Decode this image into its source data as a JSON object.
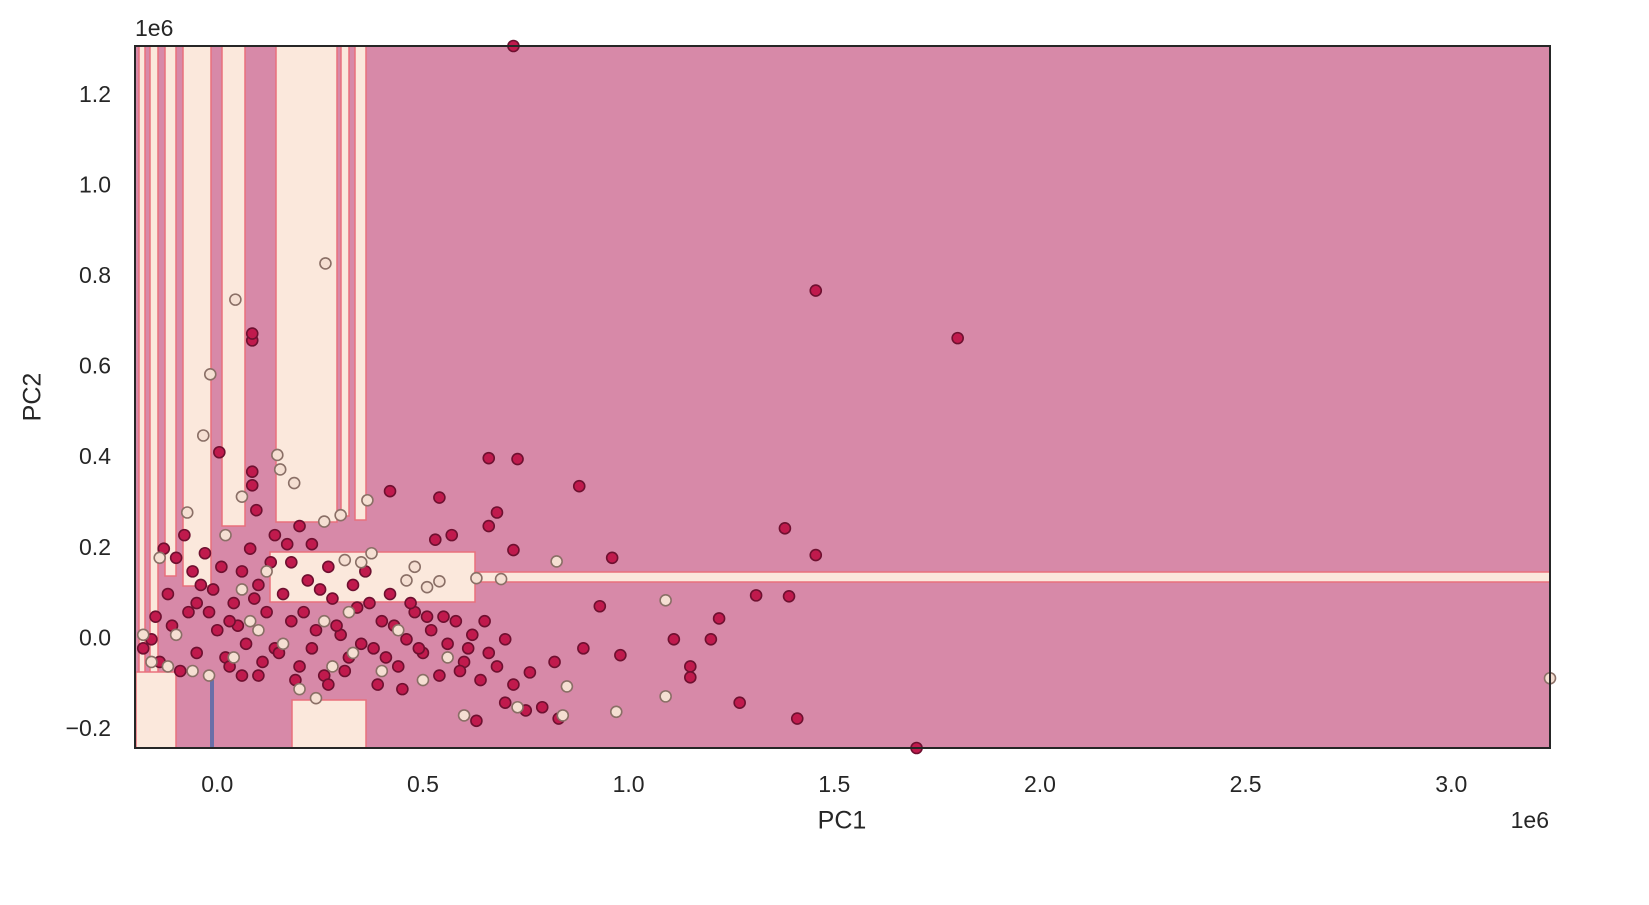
{
  "chart_data": {
    "type": "scatter",
    "xlabel": "PC1",
    "ylabel": "PC2",
    "x_offset_label": "1e6",
    "y_offset_label": "1e6",
    "grid": false,
    "xlim": [
      -200000,
      3240000
    ],
    "ylim": [
      -240000,
      1310000
    ],
    "xticks": [
      {
        "value": 0,
        "label": "0.0"
      },
      {
        "value": 500000,
        "label": "0.5"
      },
      {
        "value": 1000000,
        "label": "1.0"
      },
      {
        "value": 1500000,
        "label": "1.5"
      },
      {
        "value": 2000000,
        "label": "2.0"
      },
      {
        "value": 2500000,
        "label": "2.5"
      },
      {
        "value": 3000000,
        "label": "3.0"
      }
    ],
    "yticks": [
      {
        "value": -200000,
        "label": "−0.2"
      },
      {
        "value": 0,
        "label": "0.0"
      },
      {
        "value": 200000,
        "label": "0.2"
      },
      {
        "value": 400000,
        "label": "0.4"
      },
      {
        "value": 600000,
        "label": "0.6"
      },
      {
        "value": 800000,
        "label": "0.8"
      },
      {
        "value": 1000000,
        "label": "1.0"
      },
      {
        "value": 1200000,
        "label": "1.2"
      }
    ],
    "series": [
      {
        "color": "#c01a4d",
        "edgecolor": "#6e1030",
        "x": [
          720000,
          1455000,
          1800000,
          85000,
          85000,
          5000,
          660000,
          730000,
          880000,
          1380000,
          1455000,
          1310000,
          1390000,
          960000,
          930000,
          1220000,
          1110000,
          1200000,
          1150000,
          1150000,
          1270000,
          1410000,
          1700000,
          980000,
          890000,
          540000,
          420000,
          530000,
          570000,
          660000,
          680000,
          720000,
          630000,
          830000,
          790000,
          750000,
          760000,
          820000,
          85000,
          85000,
          95000,
          -150000,
          -120000,
          -100000,
          -80000,
          -60000,
          -40000,
          -20000,
          0,
          20000,
          40000,
          60000,
          80000,
          100000,
          120000,
          140000,
          160000,
          180000,
          200000,
          220000,
          240000,
          260000,
          280000,
          300000,
          320000,
          340000,
          360000,
          380000,
          400000,
          420000,
          440000,
          460000,
          480000,
          500000,
          520000,
          540000,
          560000,
          580000,
          600000,
          620000,
          640000,
          660000,
          680000,
          700000,
          720000,
          -180000,
          -160000,
          -140000,
          -110000,
          -90000,
          -70000,
          -50000,
          -30000,
          -10000,
          10000,
          30000,
          50000,
          70000,
          90000,
          110000,
          130000,
          150000,
          170000,
          190000,
          210000,
          230000,
          250000,
          270000,
          290000,
          310000,
          330000,
          350000,
          370000,
          390000,
          410000,
          430000,
          450000,
          470000,
          490000,
          510000,
          550000,
          590000,
          610000,
          650000,
          700000,
          200000,
          230000,
          270000,
          180000,
          140000,
          -130000,
          -50000,
          30000,
          60000,
          100000
        ],
        "y": [
          1310000,
          770000,
          665000,
          660000,
          675000,
          413000,
          400000,
          398000,
          338000,
          245000,
          186000,
          97000,
          95000,
          180000,
          73000,
          46000,
          0,
          0,
          -60000,
          -84000,
          -140000,
          -175000,
          -240000,
          -35000,
          -20000,
          313000,
          327000,
          220000,
          230000,
          250000,
          280000,
          197000,
          -180000,
          -175000,
          -150000,
          -157000,
          -73000,
          -50000,
          370000,
          340000,
          285000,
          50000,
          100000,
          180000,
          230000,
          150000,
          120000,
          60000,
          20000,
          -40000,
          80000,
          150000,
          200000,
          120000,
          60000,
          -20000,
          100000,
          40000,
          -60000,
          130000,
          20000,
          -80000,
          90000,
          10000,
          -40000,
          70000,
          150000,
          -20000,
          40000,
          100000,
          -60000,
          0,
          60000,
          -30000,
          20000,
          -80000,
          -10000,
          40000,
          -50000,
          10000,
          -90000,
          -30000,
          -60000,
          0,
          -100000,
          -20000,
          0,
          -50000,
          30000,
          -70000,
          60000,
          -30000,
          190000,
          110000,
          160000,
          -60000,
          30000,
          -10000,
          90000,
          -50000,
          170000,
          -30000,
          210000,
          -90000,
          60000,
          -20000,
          110000,
          -100000,
          30000,
          -70000,
          120000,
          -10000,
          80000,
          -100000,
          -40000,
          30000,
          -110000,
          80000,
          -20000,
          50000,
          50000,
          -70000,
          -20000,
          40000,
          -140000,
          250000,
          210000,
          160000,
          170000,
          230000,
          200000,
          80000,
          40000,
          -80000,
          -80000
        ]
      },
      {
        "color": "#f5dfd2",
        "edgecolor": "#8a6f66",
        "x": [
          263000,
          44000,
          -17000,
          -34000,
          146000,
          153000,
          187000,
          60000,
          260000,
          300000,
          365000,
          825000,
          690000,
          1090000,
          970000,
          1090000,
          850000,
          840000,
          600000,
          3240000,
          -73000,
          510000,
          460000,
          540000,
          375000,
          480000,
          630000,
          350000,
          310000,
          -160000,
          -120000,
          -100000,
          -60000,
          -20000,
          40000,
          80000,
          120000,
          160000,
          200000,
          240000,
          280000,
          330000,
          400000,
          440000,
          500000,
          560000,
          730000,
          -140000,
          20000,
          60000,
          100000,
          260000,
          320000,
          -180000
        ],
        "y": [
          830000,
          750000,
          585000,
          450000,
          407000,
          375000,
          345000,
          315000,
          260000,
          274000,
          307000,
          172000,
          133000,
          86000,
          -160000,
          -126000,
          -104000,
          -168000,
          -168000,
          -86000,
          280000,
          115000,
          130000,
          128000,
          190000,
          160000,
          135000,
          170000,
          175000,
          -50000,
          -60000,
          10000,
          -70000,
          -80000,
          -40000,
          40000,
          150000,
          -10000,
          -110000,
          -130000,
          -60000,
          -30000,
          -70000,
          20000,
          -90000,
          -40000,
          -150000,
          180000,
          230000,
          110000,
          20000,
          40000,
          60000,
          10000
        ]
      }
    ]
  }
}
